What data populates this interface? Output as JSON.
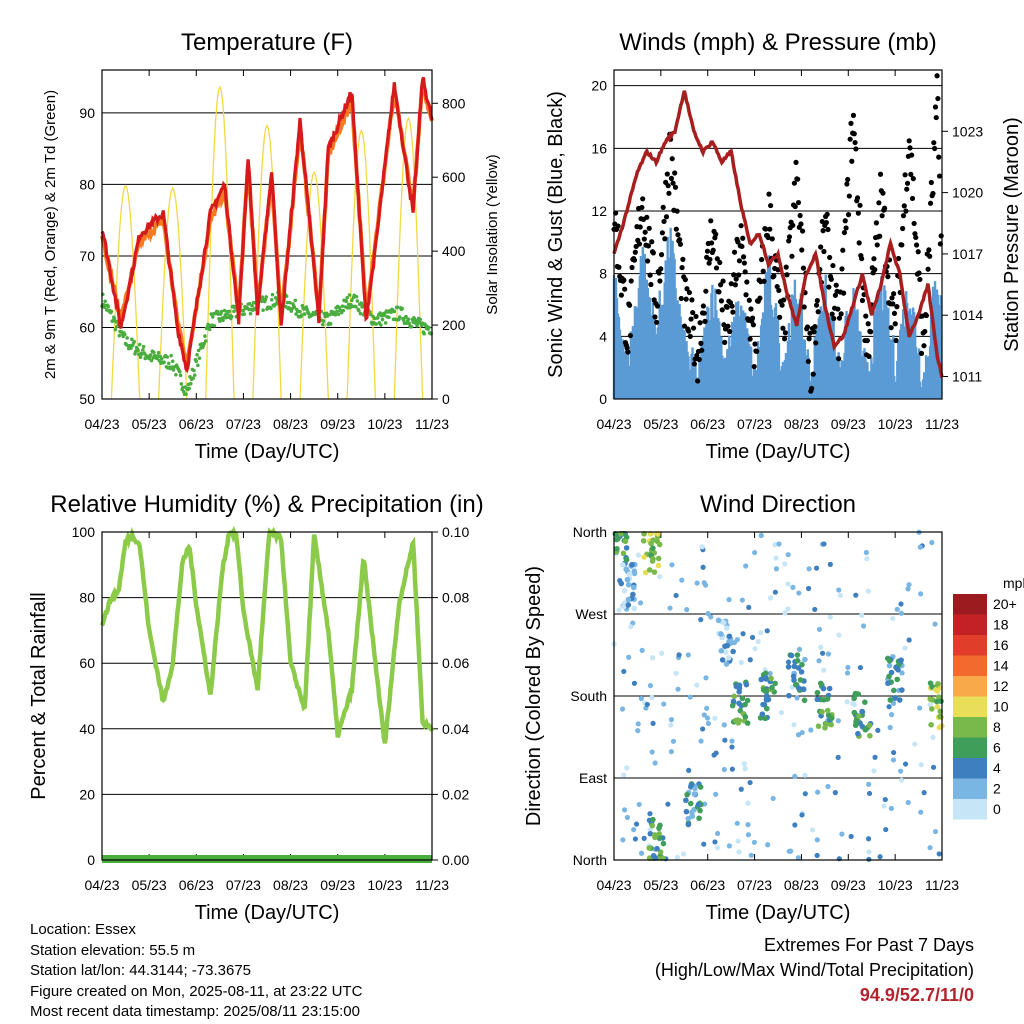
{
  "chart_data": [
    {
      "type": "line",
      "title": "Temperature (F)",
      "xlabel": "Time (Day/UTC)",
      "ylabel": "2m & 9m T (Red, Orange) & 2m Td (Green)",
      "y2label": "Solar Insolation (Yellow)",
      "ylim": [
        50,
        96
      ],
      "y2lim": [
        0,
        890
      ],
      "x_ticks": [
        "04/23",
        "05/23",
        "06/23",
        "07/23",
        "08/23",
        "09/23",
        "10/23",
        "11/23"
      ],
      "y_ticks": [
        "50",
        "60",
        "70",
        "80",
        "90"
      ],
      "y2_ticks": [
        "0",
        "200",
        "400",
        "600",
        "800"
      ],
      "grid": true,
      "colors": {
        "temp_2m": "#d7191c",
        "temp_9m": "#f47a20",
        "dewpoint": "#4aad40",
        "solar": "#f4d840"
      },
      "series": [
        {
          "key": "temp_2m",
          "x": [
            0,
            0.4,
            0.8,
            1.3,
            1.6,
            1.8,
            2.3,
            2.6,
            2.9,
            3.1,
            3.3,
            3.6,
            3.8,
            4.2,
            4.6,
            4.8,
            5.3,
            5.6,
            5.8,
            6.2,
            6.6,
            6.8,
            7.0
          ],
          "values": [
            74,
            60,
            73,
            76,
            60,
            54,
            76,
            80,
            61,
            84,
            62,
            82,
            60,
            89,
            61,
            85,
            93,
            61,
            71,
            94,
            76,
            95,
            89
          ]
        },
        {
          "key": "temp_9m",
          "x": [
            0,
            0.4,
            0.8,
            1.3,
            1.6,
            1.8,
            2.3,
            2.6,
            2.9,
            3.1,
            3.3,
            3.6,
            3.8,
            4.2,
            4.6,
            4.8,
            5.3,
            5.6,
            5.8,
            6.2,
            6.6,
            6.8,
            7.0
          ],
          "values": [
            73,
            61,
            72,
            75,
            61,
            55,
            75,
            79,
            62,
            83,
            63,
            81,
            61,
            88,
            62,
            84,
            92,
            62,
            72,
            93,
            77,
            94,
            89
          ]
        },
        {
          "key": "dewpoint",
          "x": [
            0,
            0.5,
            1.0,
            1.5,
            1.8,
            2.3,
            2.8,
            3.2,
            3.8,
            4.3,
            4.8,
            5.3,
            5.8,
            6.3,
            6.8,
            7.0
          ],
          "values": [
            64,
            58,
            56,
            55,
            51,
            61,
            62,
            63,
            64,
            62,
            61,
            64,
            61,
            62,
            60,
            60
          ]
        },
        {
          "key": "solar",
          "x": [
            0.45,
            1.2,
            1.85,
            2.45,
            3.2,
            3.85,
            4.45,
            5.2,
            5.85,
            6.5
          ],
          "values": [
            590,
            390,
            780,
            860,
            620,
            880,
            600,
            800,
            640,
            760
          ]
        }
      ]
    },
    {
      "type": "scatter",
      "title": "Winds (mph) & Pressure (mb)",
      "xlabel": "Time (Day/UTC)",
      "ylabel": "Sonic Wind & Gust (Blue, Black)",
      "y2label": "Station Pressure (Maroon)",
      "ylim": [
        0,
        21
      ],
      "y2lim": [
        1009.9,
        1026.0
      ],
      "x_ticks": [
        "04/23",
        "05/23",
        "06/23",
        "07/23",
        "08/23",
        "09/23",
        "10/23",
        "11/23"
      ],
      "y_ticks": [
        "0",
        "4",
        "8",
        "12",
        "16",
        "20"
      ],
      "y2_ticks": [
        "1011",
        "1014",
        "1017",
        "1020",
        "1023"
      ],
      "grid": true,
      "colors": {
        "wind": "#5b9bd5",
        "gust": "#000000",
        "pressure": "#a61e1e"
      },
      "series": [
        {
          "key": "pressure",
          "x": [
            0,
            0.2,
            0.5,
            0.7,
            0.9,
            1.1,
            1.3,
            1.5,
            1.7,
            1.9,
            2.1,
            2.3,
            2.5,
            2.7,
            2.9,
            3.1,
            3.3,
            3.5,
            3.7,
            3.9,
            4.1,
            4.3,
            4.5,
            4.7,
            4.9,
            5.1,
            5.3,
            5.5,
            5.7,
            5.9,
            6.1,
            6.3,
            6.5,
            6.7,
            6.9,
            7.0
          ],
          "values": [
            1017.0,
            1018.5,
            1021.0,
            1022.0,
            1021.5,
            1022.5,
            1023.0,
            1025.0,
            1023.0,
            1022.0,
            1022.5,
            1021.5,
            1022.0,
            1019.5,
            1017.5,
            1018.0,
            1016.5,
            1017.0,
            1015.0,
            1013.5,
            1016.0,
            1017.0,
            1014.5,
            1012.5,
            1013.0,
            1014.5,
            1016.0,
            1014.0,
            1015.5,
            1017.5,
            1016.0,
            1013.0,
            1014.0,
            1015.5,
            1012.0,
            1011.0
          ]
        },
        {
          "key": "wind",
          "x": [
            0,
            0.3,
            0.6,
            0.9,
            1.2,
            1.5,
            1.8,
            2.1,
            2.4,
            2.7,
            3.0,
            3.3,
            3.6,
            3.9,
            4.2,
            4.5,
            4.8,
            5.1,
            5.4,
            5.7,
            6.0,
            6.3,
            6.6,
            6.9,
            7.0
          ],
          "values": [
            7,
            2,
            9,
            4,
            10,
            3,
            1,
            7,
            2,
            6,
            1,
            8,
            2,
            7,
            1,
            7,
            2,
            6,
            1,
            7,
            2,
            7,
            1,
            8,
            5
          ]
        },
        {
          "key": "gust",
          "x": [
            0,
            0.3,
            0.6,
            0.9,
            1.2,
            1.5,
            1.8,
            2.1,
            2.4,
            2.7,
            3.0,
            3.3,
            3.6,
            3.9,
            4.2,
            4.5,
            4.8,
            5.1,
            5.4,
            5.7,
            6.0,
            6.3,
            6.6,
            6.9,
            7.0
          ],
          "values": [
            12,
            4,
            13,
            6,
            16,
            6,
            3,
            11,
            4,
            10,
            3,
            12,
            4,
            14,
            2,
            11,
            4,
            18,
            3,
            13,
            4,
            17,
            3,
            19,
            8
          ]
        }
      ]
    },
    {
      "type": "line",
      "title": "Relative Humidity (%) & Precipitation (in)",
      "xlabel": "Time (Day/UTC)",
      "ylabel": "Percent & Total Rainfall",
      "ylim": [
        0,
        100
      ],
      "y2lim": [
        0,
        0.1
      ],
      "x_ticks": [
        "04/23",
        "05/23",
        "06/23",
        "07/23",
        "08/23",
        "09/23",
        "10/23",
        "11/23"
      ],
      "y_ticks": [
        "0",
        "20",
        "40",
        "60",
        "80",
        "100"
      ],
      "y2_ticks": [
        "0.00",
        "0.02",
        "0.04",
        "0.06",
        "0.08",
        "0.10"
      ],
      "grid": true,
      "colors": {
        "rh": "#8ccb4a",
        "precip": "#4aad40"
      },
      "series": [
        {
          "key": "rh",
          "x": [
            0,
            0.2,
            0.35,
            0.5,
            0.65,
            0.8,
            1.0,
            1.3,
            1.5,
            1.7,
            1.85,
            2.0,
            2.3,
            2.55,
            2.7,
            2.85,
            3.0,
            3.3,
            3.55,
            3.8,
            4.0,
            4.3,
            4.5,
            4.8,
            5.0,
            5.3,
            5.55,
            5.8,
            6.0,
            6.3,
            6.6,
            6.8,
            7.0
          ],
          "values": [
            72,
            80,
            82,
            97,
            99,
            96,
            70,
            48,
            60,
            90,
            96,
            78,
            50,
            88,
            100,
            99,
            76,
            52,
            100,
            98,
            60,
            46,
            99,
            70,
            38,
            52,
            92,
            60,
            35,
            78,
            97,
            42,
            40
          ]
        },
        {
          "key": "precip",
          "x": [
            0,
            7.0
          ],
          "values": [
            0.0,
            0.0
          ]
        }
      ]
    },
    {
      "type": "scatter",
      "title": "Wind Direction",
      "xlabel": "Time (Day/UTC)",
      "ylabel": "Direction (Colored By Speed)",
      "x_ticks": [
        "04/23",
        "05/23",
        "06/23",
        "07/23",
        "08/23",
        "09/23",
        "10/23",
        "11/23"
      ],
      "y_ticks": [
        "North",
        "East",
        "South",
        "West",
        "North"
      ],
      "ylim": [
        0,
        360
      ],
      "colorbar": {
        "title": "mph",
        "labels": [
          "20+",
          "18",
          "16",
          "14",
          "12",
          "10",
          "8",
          "6",
          "4",
          "2",
          "0"
        ],
        "colors": [
          "#9b1b1e",
          "#c42127",
          "#e03d2b",
          "#f26a2e",
          "#f8a94a",
          "#e8de5a",
          "#79b84b",
          "#3e9e5a",
          "#3d7fbf",
          "#7ab6e4",
          "#c6e6f7"
        ]
      },
      "clusters": [
        {
          "x": 0.1,
          "dir": 350,
          "speed": 6
        },
        {
          "x": 0.3,
          "dir": 300,
          "speed": 2
        },
        {
          "x": 0.8,
          "dir": 340,
          "speed": 8
        },
        {
          "x": 0.9,
          "dir": 20,
          "speed": 6
        },
        {
          "x": 1.7,
          "dir": 60,
          "speed": 4
        },
        {
          "x": 2.4,
          "dir": 240,
          "speed": 2
        },
        {
          "x": 2.7,
          "dir": 170,
          "speed": 6
        },
        {
          "x": 3.3,
          "dir": 180,
          "speed": 6
        },
        {
          "x": 3.9,
          "dir": 200,
          "speed": 4
        },
        {
          "x": 4.5,
          "dir": 170,
          "speed": 6
        },
        {
          "x": 5.3,
          "dir": 160,
          "speed": 6
        },
        {
          "x": 6.0,
          "dir": 200,
          "speed": 4
        },
        {
          "x": 6.9,
          "dir": 170,
          "speed": 8
        }
      ]
    }
  ],
  "footer": {
    "location": "Location: Essex",
    "elevation": "Station elevation: 55.5 m",
    "latlon": "Station lat/lon: 44.3144; -73.3675",
    "created": "Figure created on Mon, 2025-08-11, at 23:22 UTC",
    "recent": "Most recent data timestamp: 2025/08/11 23:15:00"
  },
  "extremes": {
    "title": "Extremes For Past 7 Days",
    "subtitle": "(High/Low/Max Wind/Total Precipitation)",
    "values": "94.9/52.7/11/0"
  }
}
